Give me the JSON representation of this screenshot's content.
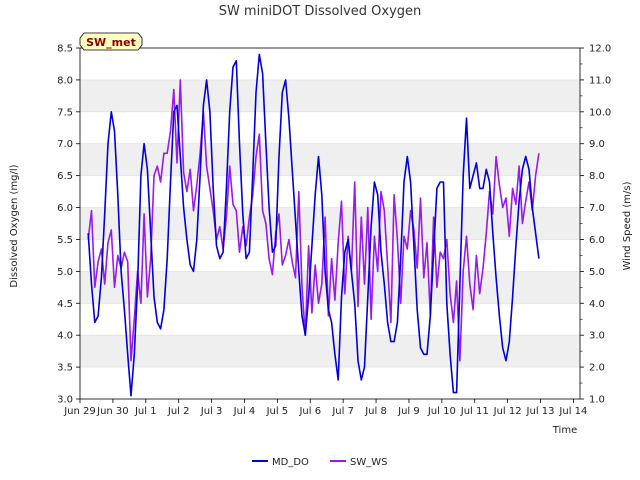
{
  "chart_data": {
    "type": "line",
    "title": "SW miniDOT Dissolved Oxygen",
    "badge": "SW_met",
    "xlabel": "Time",
    "ylabel": "Dissolved Oxygen (mg/l)",
    "y2label": "Wind Speed (m/s)",
    "x_ticks": [
      "Jun 29",
      "Jun 30",
      "Jul 1",
      "Jul 2",
      "Jul 3",
      "Jul 4",
      "Jul 5",
      "Jul 6",
      "Jul 7",
      "Jul 8",
      "Jul 9",
      "Jul 10",
      "Jul 11",
      "Jul 12",
      "Jul 13",
      "Jul 14"
    ],
    "xlim": [
      0,
      15.2
    ],
    "ylim": [
      3.0,
      8.5
    ],
    "y_ticks": [
      "3.0",
      "3.5",
      "4.0",
      "4.5",
      "5.0",
      "5.5",
      "6.0",
      "6.5",
      "7.0",
      "7.5",
      "8.0",
      "8.5"
    ],
    "y2lim": [
      1.0,
      12.0
    ],
    "y2_ticks": [
      "1.0",
      "2.0",
      "3.0",
      "4.0",
      "5.0",
      "6.0",
      "7.0",
      "8.0",
      "9.0",
      "10.0",
      "11.0",
      "12.0"
    ],
    "grid": "horizontal bands",
    "legend_position": "bottom-center",
    "series": [
      {
        "name": "MD_DO",
        "axis": "left",
        "color": "#0000dd",
        "x": [
          0.25,
          0.35,
          0.45,
          0.55,
          0.65,
          0.75,
          0.85,
          0.95,
          1.05,
          1.15,
          1.25,
          1.35,
          1.45,
          1.55,
          1.65,
          1.75,
          1.85,
          1.95,
          2.05,
          2.15,
          2.25,
          2.35,
          2.45,
          2.55,
          2.65,
          2.75,
          2.85,
          2.95,
          3.05,
          3.15,
          3.25,
          3.35,
          3.45,
          3.55,
          3.65,
          3.75,
          3.85,
          3.95,
          4.05,
          4.15,
          4.25,
          4.35,
          4.45,
          4.55,
          4.65,
          4.75,
          4.85,
          4.95,
          5.05,
          5.15,
          5.25,
          5.35,
          5.45,
          5.55,
          5.65,
          5.75,
          5.85,
          5.95,
          6.05,
          6.15,
          6.25,
          6.35,
          6.45,
          6.55,
          6.65,
          6.75,
          6.85,
          6.95,
          7.05,
          7.15,
          7.25,
          7.35,
          7.45,
          7.55,
          7.65,
          7.75,
          7.85,
          7.95,
          8.05,
          8.15,
          8.25,
          8.35,
          8.45,
          8.55,
          8.65,
          8.75,
          8.85,
          8.95,
          9.05,
          9.15,
          9.25,
          9.35,
          9.45,
          9.55,
          9.65,
          9.75,
          9.85,
          9.95,
          10.05,
          10.15,
          10.25,
          10.35,
          10.45,
          10.55,
          10.65,
          10.75,
          10.85,
          10.95,
          11.05,
          11.15,
          11.25,
          11.35,
          11.45,
          11.55,
          11.65,
          11.75,
          11.85,
          11.95,
          12.05,
          12.15,
          12.25,
          12.35,
          12.45,
          12.55,
          12.65,
          12.75,
          12.85,
          12.95,
          13.05,
          13.15,
          13.25,
          13.35,
          13.45,
          13.55,
          13.65,
          13.75,
          13.85,
          13.95
        ],
        "y": [
          5.6,
          4.8,
          4.2,
          4.3,
          4.9,
          5.9,
          7.0,
          7.5,
          7.2,
          6.2,
          5.0,
          4.4,
          3.7,
          3.05,
          3.7,
          4.8,
          6.5,
          7.0,
          6.6,
          5.6,
          4.6,
          4.2,
          4.1,
          4.4,
          5.2,
          6.4,
          7.5,
          7.6,
          6.8,
          6.0,
          5.5,
          5.1,
          5.0,
          5.5,
          6.5,
          7.6,
          8.0,
          7.5,
          6.3,
          5.4,
          5.2,
          5.3,
          6.3,
          7.5,
          8.2,
          8.3,
          7.0,
          5.9,
          5.2,
          5.3,
          6.5,
          7.8,
          8.4,
          8.1,
          7.0,
          6.0,
          5.3,
          5.4,
          6.8,
          7.8,
          8.0,
          7.4,
          6.6,
          5.8,
          5.0,
          4.3,
          4.0,
          4.6,
          5.4,
          6.2,
          6.8,
          6.2,
          5.0,
          4.4,
          4.2,
          3.7,
          3.3,
          4.6,
          5.3,
          5.5,
          5.0,
          4.5,
          3.6,
          3.3,
          3.5,
          4.6,
          5.7,
          6.4,
          6.2,
          5.3,
          4.8,
          4.2,
          3.9,
          3.9,
          4.2,
          5.2,
          6.4,
          6.8,
          6.4,
          5.4,
          4.4,
          3.8,
          3.7,
          3.7,
          4.3,
          5.3,
          6.3,
          6.4,
          6.4,
          4.5,
          3.7,
          3.1,
          3.1,
          4.8,
          6.5,
          7.4,
          6.3,
          6.5,
          6.7,
          6.3,
          6.3,
          6.6,
          6.4,
          5.6,
          4.9,
          4.3,
          3.8,
          3.6,
          3.9,
          4.6,
          5.4,
          6.1,
          6.6,
          6.8,
          6.6,
          6.0,
          5.6,
          5.2
        ]
      },
      {
        "name": "SW_WS",
        "axis": "right",
        "color": "#9a1aea",
        "x": [
          0.25,
          0.35,
          0.45,
          0.55,
          0.65,
          0.75,
          0.85,
          0.95,
          1.05,
          1.15,
          1.25,
          1.35,
          1.45,
          1.55,
          1.65,
          1.75,
          1.85,
          1.95,
          2.05,
          2.15,
          2.25,
          2.35,
          2.45,
          2.55,
          2.65,
          2.75,
          2.85,
          2.95,
          3.05,
          3.15,
          3.25,
          3.35,
          3.45,
          3.55,
          3.65,
          3.75,
          3.85,
          3.95,
          4.05,
          4.15,
          4.25,
          4.35,
          4.45,
          4.55,
          4.65,
          4.75,
          4.85,
          4.95,
          5.05,
          5.15,
          5.25,
          5.35,
          5.45,
          5.55,
          5.65,
          5.75,
          5.85,
          5.95,
          6.05,
          6.15,
          6.25,
          6.35,
          6.45,
          6.55,
          6.65,
          6.75,
          6.85,
          6.95,
          7.05,
          7.15,
          7.25,
          7.35,
          7.45,
          7.55,
          7.65,
          7.75,
          7.85,
          7.95,
          8.05,
          8.15,
          8.25,
          8.35,
          8.45,
          8.55,
          8.65,
          8.75,
          8.85,
          8.95,
          9.05,
          9.15,
          9.25,
          9.35,
          9.45,
          9.55,
          9.65,
          9.75,
          9.85,
          9.95,
          10.05,
          10.15,
          10.25,
          10.35,
          10.45,
          10.55,
          10.65,
          10.75,
          10.85,
          10.95,
          11.05,
          11.15,
          11.25,
          11.35,
          11.45,
          11.55,
          11.65,
          11.75,
          11.85,
          11.95,
          12.05,
          12.15,
          12.25,
          12.35,
          12.45,
          12.55,
          12.65,
          12.75,
          12.85,
          12.95,
          13.05,
          13.15,
          13.25,
          13.35,
          13.45,
          13.55,
          13.65,
          13.75,
          13.85,
          13.95
        ],
        "y": [
          6.0,
          6.9,
          4.5,
          5.3,
          5.7,
          4.6,
          5.9,
          6.3,
          4.5,
          5.5,
          5.1,
          5.6,
          5.3,
          2.2,
          3.5,
          5.0,
          4.0,
          6.8,
          4.2,
          5.4,
          8.0,
          8.3,
          7.8,
          8.7,
          8.7,
          9.4,
          10.7,
          8.4,
          11.0,
          8.1,
          7.5,
          8.2,
          6.9,
          7.7,
          8.7,
          10.0,
          8.3,
          7.6,
          6.9,
          6.0,
          6.4,
          5.7,
          6.7,
          8.3,
          7.1,
          6.9,
          5.6,
          6.4,
          5.8,
          6.7,
          7.4,
          8.6,
          9.3,
          6.9,
          6.5,
          5.4,
          4.9,
          6.2,
          6.8,
          5.2,
          5.5,
          6.0,
          5.3,
          4.8,
          7.5,
          4.5,
          3.0,
          5.8,
          3.7,
          5.2,
          4.0,
          4.6,
          6.7,
          3.6,
          5.4,
          4.1,
          5.9,
          7.2,
          4.3,
          6.1,
          5.0,
          7.8,
          3.9,
          6.7,
          4.6,
          7.0,
          3.5,
          6.1,
          5.0,
          7.5,
          6.9,
          5.2,
          3.4,
          7.4,
          6.0,
          4.0,
          6.1,
          5.7,
          6.9,
          6.3,
          5.1,
          7.3,
          4.8,
          5.9,
          3.6,
          6.7,
          4.5,
          5.6,
          5.4,
          6.0,
          4.3,
          3.4,
          4.7,
          2.2,
          5.0,
          6.1,
          4.6,
          3.8,
          5.5,
          4.3,
          5.1,
          6.2,
          7.5,
          6.8,
          8.6,
          7.7,
          7.0,
          7.3,
          6.1,
          7.6,
          7.1,
          8.3,
          6.5,
          7.2,
          7.8,
          6.9,
          8.0,
          8.7
        ]
      }
    ]
  }
}
